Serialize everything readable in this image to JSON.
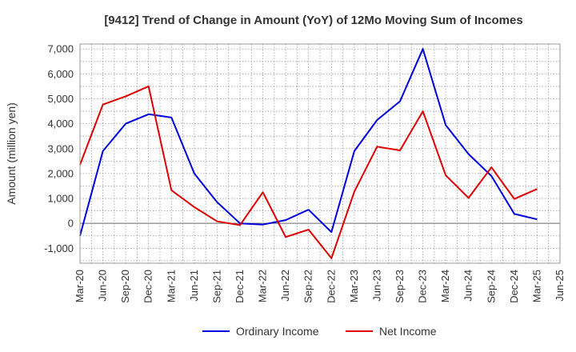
{
  "chart_data": {
    "type": "line",
    "title": "[9412]  Trend of Change in Amount (YoY) of 12Mo Moving Sum of Incomes",
    "xlabel": "",
    "ylabel": "Amount (million yen)",
    "ylim": [
      -1600,
      7200
    ],
    "yticks": [
      -1000,
      0,
      1000,
      2000,
      3000,
      4000,
      5000,
      6000,
      7000
    ],
    "ytick_labels": [
      "-1,000",
      "0",
      "1,000",
      "2,000",
      "3,000",
      "4,000",
      "5,000",
      "6,000",
      "7,000"
    ],
    "categories": [
      "Mar-20",
      "Jun-20",
      "Sep-20",
      "Dec-20",
      "Mar-21",
      "Jun-21",
      "Sep-21",
      "Dec-21",
      "Mar-22",
      "Jun-22",
      "Sep-22",
      "Dec-22",
      "Mar-23",
      "Jun-23",
      "Sep-23",
      "Dec-23",
      "Mar-24",
      "Jun-24",
      "Sep-24",
      "Dec-24",
      "Mar-25",
      "Jun-25"
    ],
    "grid": true,
    "legend_position": "bottom",
    "series": [
      {
        "name": "Ordinary Income",
        "color": "#0000dd",
        "values": [
          -500,
          2900,
          4000,
          4380,
          4250,
          2000,
          850,
          0,
          -50,
          130,
          550,
          -350,
          2900,
          4150,
          4900,
          7000,
          3950,
          2780,
          1900,
          380,
          160,
          null
        ]
      },
      {
        "name": "Net Income",
        "color": "#dd0000",
        "values": [
          2350,
          4770,
          5100,
          5500,
          1330,
          650,
          80,
          -70,
          1250,
          -550,
          -250,
          -1400,
          1270,
          3080,
          2930,
          4500,
          1930,
          1020,
          2250,
          980,
          1380,
          null
        ]
      }
    ]
  }
}
